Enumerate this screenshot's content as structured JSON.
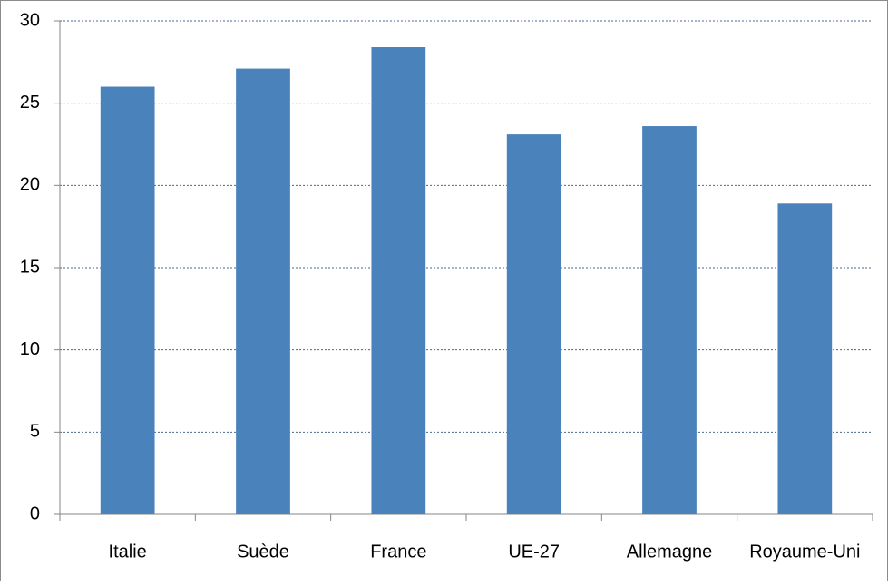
{
  "chart_data": {
    "type": "bar",
    "categories": [
      "Italie",
      "Suède",
      "France",
      "UE-27",
      "Allemagne",
      "Royaume-Uni"
    ],
    "values": [
      26.0,
      27.1,
      28.4,
      23.1,
      23.6,
      18.9
    ],
    "color": "#4a82bc",
    "ylim": [
      0,
      30
    ],
    "yticks": [
      0,
      5,
      10,
      15,
      20,
      25,
      30
    ],
    "grid": true
  }
}
